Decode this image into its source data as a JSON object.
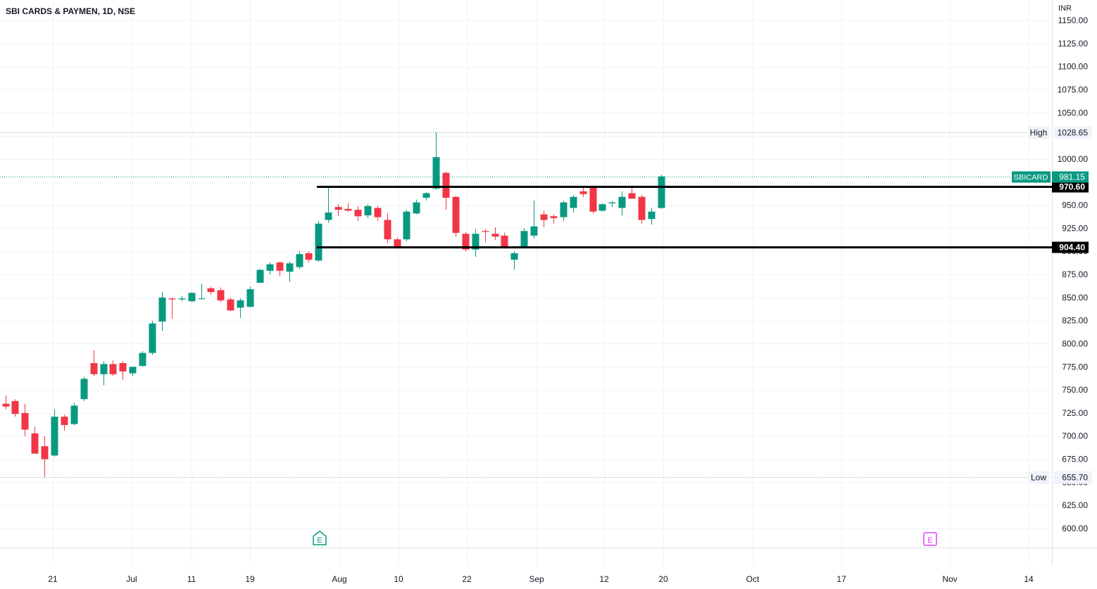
{
  "header": {
    "title": "SBI CARDS & PAYMEN, 1D, NSE",
    "currency": "INR"
  },
  "colors": {
    "up": "#26a69a",
    "down": "#ef5350",
    "up_body": "#089981",
    "down_body": "#f23645",
    "grid": "#f0f3fa",
    "axis_text": "#131722"
  },
  "chart_data": {
    "type": "candlestick",
    "symbol": "SBICARD",
    "exchange": "NSE",
    "interval": "1D",
    "y_axis": {
      "ticks": [
        "600.00",
        "625.00",
        "650.00",
        "675.00",
        "700.00",
        "725.00",
        "750.00",
        "775.00",
        "800.00",
        "825.00",
        "850.00",
        "875.00",
        "900.00",
        "925.00",
        "950.00",
        "975.00",
        "1000.00",
        "1025.00",
        "1050.00",
        "1075.00",
        "1100.00",
        "1125.00",
        "1150.00"
      ],
      "range": [
        587,
        1155
      ]
    },
    "x_axis": {
      "ticks": [
        {
          "label": "21",
          "date": "2022-06-21"
        },
        {
          "label": "Jul",
          "date": "2022-07-01"
        },
        {
          "label": "11",
          "date": "2022-07-11"
        },
        {
          "label": "19",
          "date": "2022-07-19"
        },
        {
          "label": "Aug",
          "date": "2022-08-01"
        },
        {
          "label": "10",
          "date": "2022-08-10"
        },
        {
          "label": "22",
          "date": "2022-08-22"
        },
        {
          "label": "Sep",
          "date": "2022-09-01"
        },
        {
          "label": "12",
          "date": "2022-09-12"
        },
        {
          "label": "20",
          "date": "2022-09-20"
        },
        {
          "label": "Oct",
          "date": "2022-10-03"
        },
        {
          "label": "17",
          "date": "2022-10-17"
        },
        {
          "label": "Nov",
          "date": "2022-11-01"
        },
        {
          "label": "14",
          "date": "2022-11-14"
        }
      ]
    },
    "candles": [
      {
        "o": 735,
        "h": 744,
        "l": 729,
        "c": 732
      },
      {
        "o": 738,
        "h": 740,
        "l": 721,
        "c": 724
      },
      {
        "o": 725,
        "h": 735,
        "l": 700,
        "c": 707
      },
      {
        "o": 703,
        "h": 710,
        "l": 682,
        "c": 681
      },
      {
        "o": 689,
        "h": 700,
        "l": 655.7,
        "c": 675
      },
      {
        "o": 679,
        "h": 729,
        "l": 678,
        "c": 721
      },
      {
        "o": 721,
        "h": 723,
        "l": 706,
        "c": 712
      },
      {
        "o": 713,
        "h": 736,
        "l": 712,
        "c": 733
      },
      {
        "o": 740,
        "h": 764,
        "l": 738,
        "c": 762
      },
      {
        "o": 779,
        "h": 793,
        "l": 765,
        "c": 767
      },
      {
        "o": 767,
        "h": 781,
        "l": 755,
        "c": 778
      },
      {
        "o": 778,
        "h": 782,
        "l": 765,
        "c": 767
      },
      {
        "o": 779,
        "h": 781,
        "l": 761,
        "c": 770
      },
      {
        "o": 768,
        "h": 775,
        "l": 765,
        "c": 775
      },
      {
        "o": 776,
        "h": 792,
        "l": 775,
        "c": 790
      },
      {
        "o": 790,
        "h": 825,
        "l": 788,
        "c": 822
      },
      {
        "o": 824,
        "h": 856,
        "l": 814,
        "c": 850
      },
      {
        "o": 849,
        "h": 850,
        "l": 827,
        "c": 848
      },
      {
        "o": 848,
        "h": 852,
        "l": 846,
        "c": 849
      },
      {
        "o": 846,
        "h": 856,
        "l": 845,
        "c": 855
      },
      {
        "o": 849,
        "h": 865,
        "l": 848,
        "c": 849
      },
      {
        "o": 860,
        "h": 862,
        "l": 853,
        "c": 856
      },
      {
        "o": 858,
        "h": 861,
        "l": 845,
        "c": 847
      },
      {
        "o": 848,
        "h": 850,
        "l": 835,
        "c": 836
      },
      {
        "o": 839,
        "h": 849,
        "l": 828,
        "c": 847
      },
      {
        "o": 840,
        "h": 862,
        "l": 839,
        "c": 859
      },
      {
        "o": 866,
        "h": 881,
        "l": 866,
        "c": 880
      },
      {
        "o": 879,
        "h": 888,
        "l": 875,
        "c": 886
      },
      {
        "o": 888,
        "h": 889,
        "l": 873,
        "c": 879
      },
      {
        "o": 878,
        "h": 889,
        "l": 867,
        "c": 887
      },
      {
        "o": 883,
        "h": 900,
        "l": 881,
        "c": 897
      },
      {
        "o": 898,
        "h": 900,
        "l": 888,
        "c": 891
      },
      {
        "o": 890,
        "h": 933,
        "l": 889,
        "c": 930
      },
      {
        "o": 934,
        "h": 970,
        "l": 931,
        "c": 942
      },
      {
        "o": 948,
        "h": 951,
        "l": 938,
        "c": 945
      },
      {
        "o": 946,
        "h": 952,
        "l": 943,
        "c": 944
      },
      {
        "o": 945,
        "h": 949,
        "l": 933,
        "c": 938
      },
      {
        "o": 939,
        "h": 951,
        "l": 936,
        "c": 949
      },
      {
        "o": 947,
        "h": 949,
        "l": 933,
        "c": 937
      },
      {
        "o": 934,
        "h": 941,
        "l": 909,
        "c": 913
      },
      {
        "o": 913,
        "h": 915,
        "l": 905,
        "c": 904
      },
      {
        "o": 913,
        "h": 945,
        "l": 911,
        "c": 943
      },
      {
        "o": 941,
        "h": 956,
        "l": 940,
        "c": 953
      },
      {
        "o": 958,
        "h": 964,
        "l": 955,
        "c": 963
      },
      {
        "o": 968,
        "h": 1028.65,
        "l": 967,
        "c": 1002
      },
      {
        "o": 985,
        "h": 986,
        "l": 945,
        "c": 958
      },
      {
        "o": 959,
        "h": 960,
        "l": 916,
        "c": 920
      },
      {
        "o": 919,
        "h": 921,
        "l": 900,
        "c": 902
      },
      {
        "o": 902,
        "h": 924,
        "l": 894,
        "c": 919
      },
      {
        "o": 922,
        "h": 924,
        "l": 910,
        "c": 921
      },
      {
        "o": 919,
        "h": 926,
        "l": 912,
        "c": 916
      },
      {
        "o": 917,
        "h": 920,
        "l": 904,
        "c": 905
      },
      {
        "o": 891,
        "h": 900,
        "l": 880,
        "c": 898
      },
      {
        "o": 904,
        "h": 925,
        "l": 903,
        "c": 922
      },
      {
        "o": 917,
        "h": 955,
        "l": 914,
        "c": 927
      },
      {
        "o": 940,
        "h": 944,
        "l": 926,
        "c": 934
      },
      {
        "o": 938,
        "h": 940,
        "l": 930,
        "c": 936
      },
      {
        "o": 937,
        "h": 955,
        "l": 933,
        "c": 953
      },
      {
        "o": 947,
        "h": 961,
        "l": 942,
        "c": 959
      },
      {
        "o": 965,
        "h": 971,
        "l": 959,
        "c": 962
      },
      {
        "o": 970,
        "h": 970,
        "l": 941,
        "c": 943
      },
      {
        "o": 944,
        "h": 952,
        "l": 943,
        "c": 951
      },
      {
        "o": 952,
        "h": 954,
        "l": 948,
        "c": 953
      },
      {
        "o": 947,
        "h": 965,
        "l": 939,
        "c": 959
      },
      {
        "o": 963,
        "h": 970,
        "l": 958,
        "c": 957
      },
      {
        "o": 959,
        "h": 961,
        "l": 930,
        "c": 934
      },
      {
        "o": 935,
        "h": 947,
        "l": 929,
        "c": 943
      },
      {
        "o": 947,
        "h": 983,
        "l": 946,
        "c": 981.15
      }
    ],
    "horizontal_lines": [
      {
        "value": "970.60",
        "start_index": 32,
        "color": "#000000"
      },
      {
        "value": "904.40",
        "start_index": 32,
        "color": "#000000"
      }
    ],
    "price_markers": [
      {
        "label": "High",
        "value": "1028.65"
      },
      {
        "label": "SBICARD",
        "value": "981.15"
      },
      {
        "label": "Low",
        "value": "655.70"
      }
    ],
    "events": [
      {
        "label": "E",
        "date_label": "Jul 28",
        "color": "#089981"
      },
      {
        "label": "E",
        "date_label": "Oct 27",
        "color": "#e040fb"
      }
    ],
    "grid": true
  }
}
